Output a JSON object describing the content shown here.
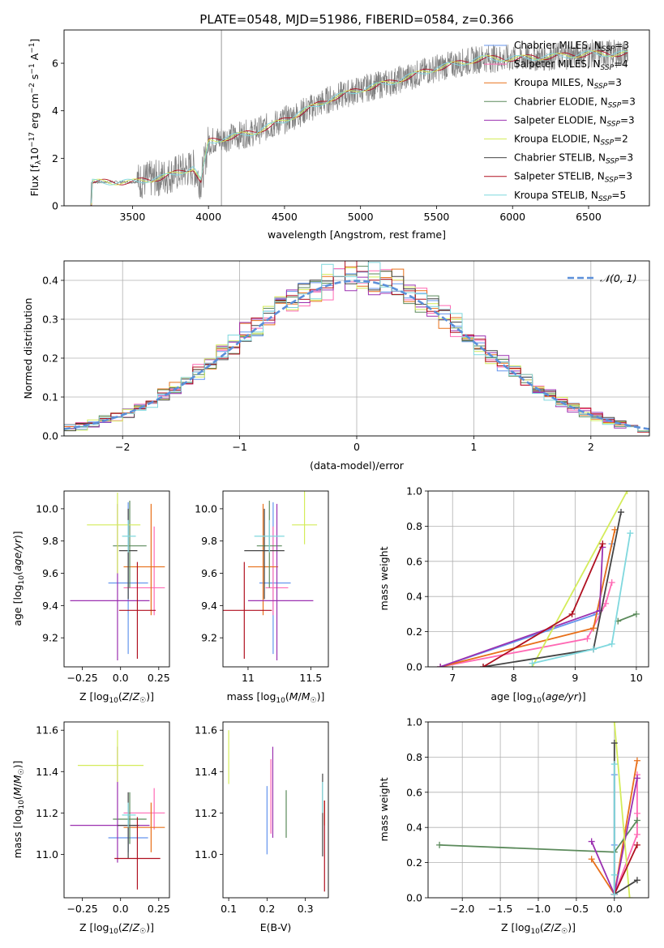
{
  "title": "PLATE=0548, MJD=51986, FIBERID=0584, z=0.366",
  "colors": {
    "chabrier_miles": "#6495ed",
    "salpeter_miles": "#ff69b4",
    "kroupa_miles": "#e8701a",
    "chabrier_elodie": "#5b8a5b",
    "salpeter_elodie": "#9b30b0",
    "kroupa_elodie": "#d4ec5a",
    "chabrier_stelib": "#444444",
    "salpeter_stelib": "#b01020",
    "kroupa_stelib": "#7fd8de",
    "data": "#808080",
    "normal": "#5b8fd9"
  },
  "chart_data": [
    {
      "id": "spectrum",
      "type": "line",
      "xlabel": "wavelength [Angstrom, rest frame]",
      "ylabel": "Flux [f_λ 10^-17 erg cm^-2 s^-1 A^-1]",
      "xlim": [
        3050,
        6900
      ],
      "ylim": [
        0,
        7.4
      ],
      "xticks": [
        3500,
        4000,
        4500,
        5000,
        5500,
        6000,
        6500
      ],
      "yticks": [
        0,
        2,
        4,
        6
      ],
      "continuum_x": [
        3230,
        3500,
        3700,
        3900,
        3950,
        4000,
        4300,
        4500,
        4800,
        5000,
        5200,
        5500,
        5800,
        6000,
        6300,
        6500,
        6750
      ],
      "continuum_y": [
        1.0,
        1.0,
        1.2,
        1.6,
        1.0,
        2.7,
        3.1,
        3.6,
        4.5,
        4.9,
        5.2,
        5.8,
        6.2,
        6.2,
        6.3,
        6.4,
        6.4
      ],
      "legend": [
        {
          "label": "Chabrier MILES, N",
          "sub": "SSP",
          "n": "=3",
          "key": "chabrier_miles"
        },
        {
          "label": "Salpeter MILES, N",
          "sub": "SSP",
          "n": "=4",
          "key": "salpeter_miles"
        },
        {
          "label": "Kroupa MILES, N",
          "sub": "SSP",
          "n": "=3",
          "key": "kroupa_miles"
        },
        {
          "label": "Chabrier ELODIE, N",
          "sub": "SSP",
          "n": "=3",
          "key": "chabrier_elodie"
        },
        {
          "label": "Salpeter ELODIE, N",
          "sub": "SSP",
          "n": "=3",
          "key": "salpeter_elodie"
        },
        {
          "label": "Kroupa ELODIE, N",
          "sub": "SSP",
          "n": "=2",
          "key": "kroupa_elodie"
        },
        {
          "label": "Chabrier STELIB, N",
          "sub": "SSP",
          "n": "=3",
          "key": "chabrier_stelib"
        },
        {
          "label": "Salpeter STELIB, N",
          "sub": "SSP",
          "n": "=3",
          "key": "salpeter_stelib"
        },
        {
          "label": "Kroupa STELIB, N",
          "sub": "SSP",
          "n": "=5",
          "key": "kroupa_stelib"
        }
      ]
    },
    {
      "id": "residuals",
      "type": "histogram",
      "xlabel": "(data-model)/error",
      "ylabel": "Normed distribution",
      "xlim": [
        -2.5,
        2.5
      ],
      "ylim": [
        0,
        0.45
      ],
      "xticks": [
        -2,
        -1,
        0,
        1,
        2
      ],
      "yticks": [
        0.0,
        0.1,
        0.2,
        0.3,
        0.4
      ],
      "grid": true,
      "bin_edges": [
        -2.5,
        -2.4,
        -2.3,
        -2.2,
        -2.1,
        -2.0,
        -1.9,
        -1.8,
        -1.7,
        -1.6,
        -1.5,
        -1.4,
        -1.3,
        -1.2,
        -1.1,
        -1.0,
        -0.9,
        -0.8,
        -0.7,
        -0.6,
        -0.5,
        -0.4,
        -0.3,
        -0.2,
        -0.1,
        0.0,
        0.1,
        0.2,
        0.3,
        0.4,
        0.5,
        0.6,
        0.7,
        0.8,
        0.9,
        1.0,
        1.1,
        1.2,
        1.3,
        1.4,
        1.5,
        1.6,
        1.7,
        1.8,
        1.9,
        2.0,
        2.1,
        2.2,
        2.3,
        2.4,
        2.5
      ],
      "normal_label": "N(0, 1)",
      "normal_legend": "𝒩(0, 1)"
    },
    {
      "id": "age-vs-Z",
      "type": "errorbar",
      "xlabel": "Z [log10(Z/Z☉)]",
      "ylabel": "age [log10(age/yr)]",
      "xlim": [
        -0.37,
        0.32
      ],
      "ylim": [
        9.02,
        10.11
      ],
      "xticks": [
        -0.25,
        0.0,
        0.25
      ],
      "yticks": [
        9.2,
        9.4,
        9.6,
        9.8,
        10.0
      ],
      "points": [
        {
          "key": "chabrier_miles",
          "x": 0.05,
          "y": 9.54,
          "xerr": [
            0.13,
            0.13
          ],
          "yerr": [
            0.44,
            0.5
          ]
        },
        {
          "key": "salpeter_miles",
          "x": 0.22,
          "y": 9.51,
          "xerr": [
            0.2,
            0.07
          ],
          "yerr": [
            0.17,
            0.38
          ]
        },
        {
          "key": "kroupa_miles",
          "x": 0.2,
          "y": 9.64,
          "xerr": [
            0.18,
            0.09
          ],
          "yerr": [
            0.3,
            0.39
          ]
        },
        {
          "key": "chabrier_elodie",
          "x": 0.06,
          "y": 9.77,
          "xerr": [
            0.11,
            0.11
          ],
          "yerr": [
            0.26,
            0.28
          ]
        },
        {
          "key": "salpeter_elodie",
          "x": -0.02,
          "y": 9.43,
          "xerr": [
            0.31,
            0.21
          ],
          "yerr": [
            0.37,
            0.6
          ]
        },
        {
          "key": "kroupa_elodie",
          "x": -0.02,
          "y": 9.9,
          "xerr": [
            0.2,
            0.15
          ],
          "yerr": [
            0.3,
            0.2
          ]
        },
        {
          "key": "chabrier_stelib",
          "x": 0.05,
          "y": 9.74,
          "xerr": [
            0.06,
            0.06
          ],
          "yerr": [
            0.3,
            0.26
          ]
        },
        {
          "key": "salpeter_stelib",
          "x": 0.11,
          "y": 9.37,
          "xerr": [
            0.12,
            0.12
          ],
          "yerr": [
            0.3,
            0.3
          ]
        },
        {
          "key": "kroupa_stelib",
          "x": 0.05,
          "y": 9.83,
          "xerr": [
            0.04,
            0.05
          ],
          "yerr": [
            0.1,
            0.1
          ]
        }
      ]
    },
    {
      "id": "age-vs-mass",
      "type": "errorbar",
      "xlabel": "mass [log10(M/M☉)]",
      "ylabel": "",
      "xlim": [
        10.8,
        11.64
      ],
      "ylim": [
        9.02,
        10.11
      ],
      "xticks": [
        11.0,
        11.5
      ],
      "yticks": [
        9.2,
        9.4,
        9.6,
        9.8,
        10.0
      ],
      "points": [
        {
          "key": "chabrier_miles",
          "x": 11.2,
          "y": 9.54,
          "xerr": [
            0.11,
            0.14
          ],
          "yerr": [
            0.44,
            0.5
          ]
        },
        {
          "key": "salpeter_miles",
          "x": 11.2,
          "y": 9.51,
          "xerr": [
            0.06,
            0.12
          ],
          "yerr": [
            0.17,
            0.38
          ]
        },
        {
          "key": "kroupa_miles",
          "x": 11.12,
          "y": 9.64,
          "xerr": [
            0.12,
            0.12
          ],
          "yerr": [
            0.3,
            0.39
          ]
        },
        {
          "key": "chabrier_elodie",
          "x": 11.17,
          "y": 9.77,
          "xerr": [
            0.1,
            0.1
          ],
          "yerr": [
            0.26,
            0.28
          ]
        },
        {
          "key": "salpeter_elodie",
          "x": 11.23,
          "y": 9.43,
          "xerr": [
            0.23,
            0.29
          ],
          "yerr": [
            0.37,
            0.6
          ]
        },
        {
          "key": "kroupa_elodie",
          "x": 11.45,
          "y": 9.9,
          "xerr": [
            0.1,
            0.1
          ],
          "yerr": [
            0.12,
            0.22
          ]
        },
        {
          "key": "chabrier_stelib",
          "x": 11.13,
          "y": 9.74,
          "xerr": [
            0.16,
            0.16
          ],
          "yerr": [
            0.3,
            0.26
          ]
        },
        {
          "key": "salpeter_stelib",
          "x": 10.97,
          "y": 9.37,
          "xerr": [
            0.18,
            0.22
          ],
          "yerr": [
            0.3,
            0.3
          ]
        },
        {
          "key": "kroupa_stelib",
          "x": 11.17,
          "y": 9.83,
          "xerr": [
            0.12,
            0.12
          ],
          "yerr": [
            0.1,
            0.1
          ]
        }
      ]
    },
    {
      "id": "weight-vs-age",
      "type": "line",
      "xlabel": "age [log10(age/yr)]",
      "ylabel": "mass weight",
      "xlim": [
        6.6,
        10.2
      ],
      "ylim": [
        0,
        1.0
      ],
      "xticks": [
        7,
        8,
        9,
        10
      ],
      "yticks": [
        0.0,
        0.2,
        0.4,
        0.6,
        0.8,
        1.0
      ],
      "grid": true,
      "series": [
        {
          "key": "chabrier_miles",
          "x": [
            6.8,
            9.35,
            9.6
          ],
          "y": [
            0.0,
            0.3,
            0.7
          ]
        },
        {
          "key": "salpeter_miles",
          "x": [
            6.8,
            9.2,
            9.5,
            9.6
          ],
          "y": [
            0.0,
            0.16,
            0.36,
            0.48
          ]
        },
        {
          "key": "kroupa_miles",
          "x": [
            6.8,
            9.3,
            9.65
          ],
          "y": [
            0.0,
            0.22,
            0.78
          ]
        },
        {
          "key": "chabrier_elodie",
          "x": [
            9.7,
            10.0
          ],
          "y": [
            0.26,
            0.3
          ]
        },
        {
          "key": "salpeter_elodie",
          "x": [
            6.8,
            9.4,
            9.45
          ],
          "y": [
            0.0,
            0.32,
            0.68
          ]
        },
        {
          "key": "kroupa_elodie",
          "x": [
            8.3,
            9.85
          ],
          "y": [
            0.0,
            1.0
          ]
        },
        {
          "key": "chabrier_stelib",
          "x": [
            7.5,
            9.3,
            9.75
          ],
          "y": [
            0.0,
            0.1,
            0.88
          ]
        },
        {
          "key": "salpeter_stelib",
          "x": [
            7.5,
            8.95,
            9.45
          ],
          "y": [
            0.0,
            0.3,
            0.7
          ]
        },
        {
          "key": "kroupa_stelib",
          "x": [
            8.3,
            9.3,
            9.6,
            9.9
          ],
          "y": [
            0.02,
            0.1,
            0.13,
            0.76
          ]
        }
      ]
    },
    {
      "id": "mass-vs-Z",
      "type": "errorbar",
      "xlabel": "Z [log10(Z/Z☉)]",
      "ylabel": "mass [log10(M/M☉)]",
      "xlim": [
        -0.37,
        0.32
      ],
      "ylim": [
        10.79,
        11.64
      ],
      "xticks": [
        -0.25,
        0.0,
        0.25
      ],
      "yticks": [
        11.0,
        11.2,
        11.4,
        11.6
      ],
      "points": [
        {
          "key": "chabrier_miles",
          "x": 0.05,
          "y": 11.08,
          "xerr": [
            0.13,
            0.13
          ],
          "yerr": [
            0.07,
            0.09
          ]
        },
        {
          "key": "salpeter_miles",
          "x": 0.22,
          "y": 11.2,
          "xerr": [
            0.2,
            0.07
          ],
          "yerr": [
            0.08,
            0.12
          ]
        },
        {
          "key": "kroupa_miles",
          "x": 0.2,
          "y": 11.13,
          "xerr": [
            0.18,
            0.09
          ],
          "yerr": [
            0.12,
            0.12
          ]
        },
        {
          "key": "chabrier_elodie",
          "x": 0.06,
          "y": 11.17,
          "xerr": [
            0.11,
            0.11
          ],
          "yerr": [
            0.12,
            0.13
          ]
        },
        {
          "key": "salpeter_elodie",
          "x": -0.02,
          "y": 11.14,
          "xerr": [
            0.31,
            0.21
          ],
          "yerr": [
            0.18,
            0.38
          ]
        },
        {
          "key": "kroupa_elodie",
          "x": -0.02,
          "y": 11.43,
          "xerr": [
            0.26,
            0.17
          ],
          "yerr": [
            0.08,
            0.17
          ]
        },
        {
          "key": "chabrier_stelib",
          "x": 0.05,
          "y": 11.14,
          "xerr": [
            0.07,
            0.07
          ],
          "yerr": [
            0.16,
            0.16
          ]
        },
        {
          "key": "salpeter_stelib",
          "x": 0.11,
          "y": 10.98,
          "xerr": [
            0.15,
            0.15
          ],
          "yerr": [
            0.15,
            0.2
          ]
        },
        {
          "key": "kroupa_stelib",
          "x": 0.05,
          "y": 11.19,
          "xerr": [
            0.04,
            0.05
          ],
          "yerr": [
            0.06,
            0.06
          ]
        }
      ]
    },
    {
      "id": "mass-vs-EBV",
      "type": "errorbar",
      "xlabel": "E(B-V)",
      "ylabel": "",
      "xlim": [
        0.085,
        0.36
      ],
      "ylim": [
        10.79,
        11.64
      ],
      "xticks": [
        0.1,
        0.2,
        0.3
      ],
      "yticks": [
        11.0,
        11.2,
        11.4,
        11.6
      ],
      "points": [
        {
          "key": "chabrier_miles",
          "x": 0.2,
          "y": 11.15,
          "xerr": [
            0,
            0
          ],
          "yerr": [
            0.15,
            0.18
          ]
        },
        {
          "key": "salpeter_miles",
          "x": 0.21,
          "y": 11.27,
          "xerr": [
            0,
            0
          ],
          "yerr": [
            0.17,
            0.19
          ]
        },
        {
          "key": "kroupa_miles",
          "x": 0.35,
          "y": 11.2,
          "xerr": [
            0,
            0
          ],
          "yerr": [
            0.06,
            0.06
          ]
        },
        {
          "key": "chabrier_elodie",
          "x": 0.25,
          "y": 11.2,
          "xerr": [
            0,
            0
          ],
          "yerr": [
            0.12,
            0.11
          ]
        },
        {
          "key": "salpeter_elodie",
          "x": 0.215,
          "y": 11.3,
          "xerr": [
            0,
            0
          ],
          "yerr": [
            0.22,
            0.22
          ]
        },
        {
          "key": "kroupa_elodie",
          "x": 0.1,
          "y": 11.45,
          "xerr": [
            0,
            0
          ],
          "yerr": [
            0.11,
            0.15
          ]
        },
        {
          "key": "chabrier_stelib",
          "x": 0.345,
          "y": 11.25,
          "xerr": [
            0,
            0
          ],
          "yerr": [
            0.26,
            0.14
          ]
        },
        {
          "key": "salpeter_stelib",
          "x": 0.35,
          "y": 11.02,
          "xerr": [
            0,
            0
          ],
          "yerr": [
            0.2,
            0.24
          ]
        },
        {
          "key": "kroupa_stelib",
          "x": 0.345,
          "y": 11.3,
          "xerr": [
            0,
            0
          ],
          "yerr": [
            0.1,
            0.05
          ]
        }
      ]
    },
    {
      "id": "weight-vs-Z",
      "type": "line",
      "xlabel": "Z [log10(Z/Z☉)]",
      "ylabel": "mass weight",
      "xlim": [
        -2.45,
        0.45
      ],
      "ylim": [
        0,
        1.0
      ],
      "xticks": [
        -2.0,
        -1.5,
        -1.0,
        -0.5,
        0.0
      ],
      "xticklabels": [
        "−2.0",
        "−1.5",
        "−1.0",
        "−0.5",
        "0.0"
      ],
      "yticks": [
        0.0,
        0.2,
        0.4,
        0.6,
        0.8,
        1.0
      ],
      "grid": true,
      "series": [
        {
          "key": "chabrier_miles",
          "x": [
            0.0,
            0.0,
            0.0
          ],
          "y": [
            0.02,
            0.3,
            0.7
          ]
        },
        {
          "key": "salpeter_miles",
          "x": [
            0.0,
            0.3,
            0.3,
            0.3
          ],
          "y": [
            0.02,
            0.36,
            0.48,
            0.7
          ]
        },
        {
          "key": "kroupa_miles",
          "x": [
            -0.3,
            0.0,
            0.3
          ],
          "y": [
            0.22,
            0.02,
            0.78
          ]
        },
        {
          "key": "chabrier_elodie",
          "x": [
            -2.3,
            0.0,
            0.3
          ],
          "y": [
            0.3,
            0.26,
            0.44
          ]
        },
        {
          "key": "salpeter_elodie",
          "x": [
            -0.3,
            0.0,
            0.3
          ],
          "y": [
            0.32,
            0.02,
            0.68
          ]
        },
        {
          "key": "kroupa_elodie",
          "x": [
            0.0,
            0.2
          ],
          "y": [
            1.0,
            0.0
          ]
        },
        {
          "key": "chabrier_stelib",
          "x": [
            0.0,
            0.0,
            0.3
          ],
          "y": [
            0.88,
            0.02,
            0.1
          ]
        },
        {
          "key": "salpeter_stelib",
          "x": [
            0.0,
            0.3
          ],
          "y": [
            0.02,
            0.3
          ]
        },
        {
          "key": "kroupa_stelib",
          "x": [
            0.0,
            0.0,
            0.0
          ],
          "y": [
            0.13,
            0.76,
            0.02
          ]
        }
      ]
    }
  ]
}
